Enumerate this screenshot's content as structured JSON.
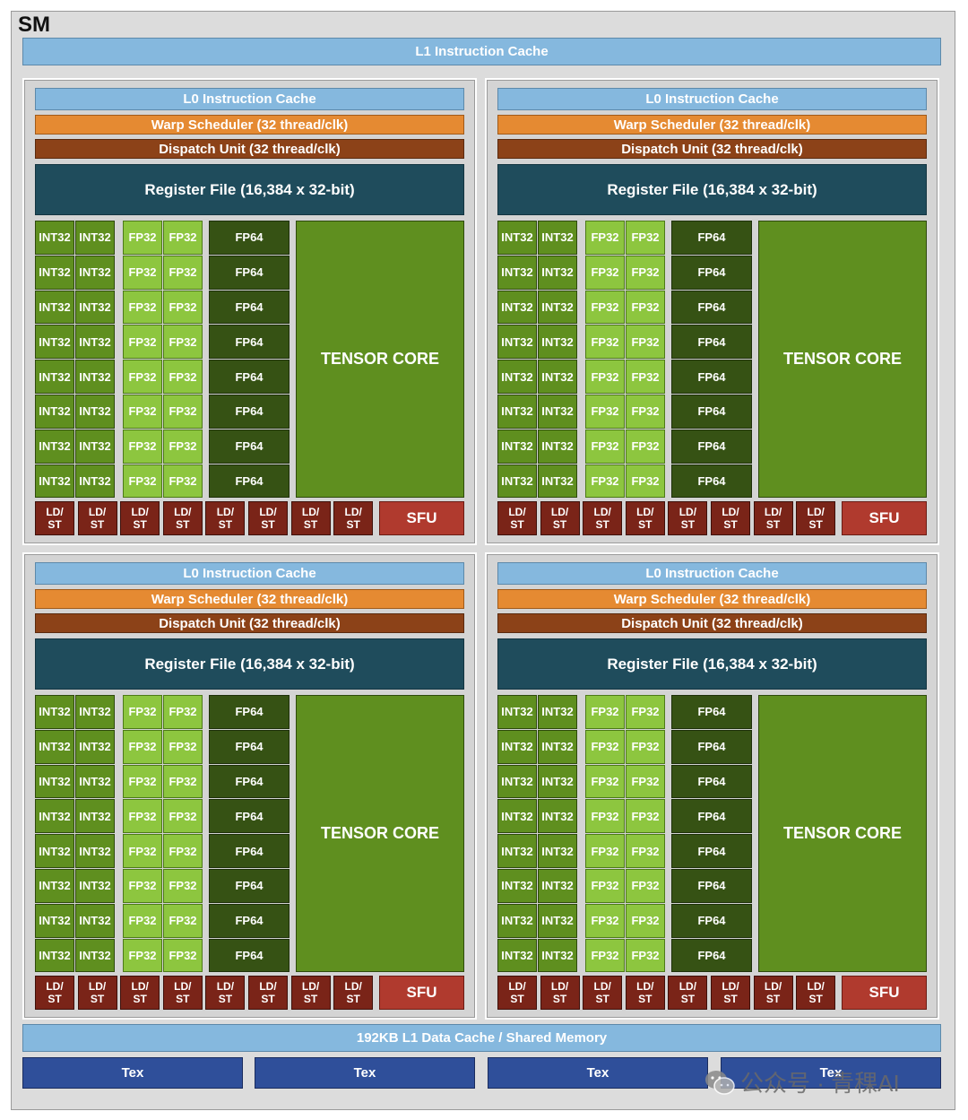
{
  "sm": {
    "title": "SM",
    "l1_instruction_cache": "L1 Instruction Cache",
    "l1_data_cache": "192KB L1 Data Cache / Shared Memory",
    "tex_units": [
      "Tex",
      "Tex",
      "Tex",
      "Tex"
    ]
  },
  "quadrant": {
    "l0_cache": "L0 Instruction Cache",
    "warp_scheduler": "Warp Scheduler (32 thread/clk)",
    "dispatch_unit": "Dispatch Unit (32 thread/clk)",
    "register_file": "Register File (16,384 x 32-bit)",
    "int32_label": "INT32",
    "fp32_label": "FP32",
    "fp64_label": "FP64",
    "tensor_core": "TENSOR CORE",
    "ldst_label": "LD/\nST",
    "sfu_label": "SFU",
    "rows": 8,
    "ldst_count": 8
  },
  "quadrant_count": 4,
  "colors": {
    "cache": "#85b8de",
    "warp": "#e58a32",
    "dispatch": "#8c4218",
    "register": "#1f4c5c",
    "int32": "#5f8f1f",
    "fp32": "#8dc63f",
    "fp64": "#365214",
    "ldst": "#7a2418",
    "sfu": "#b03a2e",
    "tex": "#2f4f9a"
  },
  "watermark": {
    "text": "公众号 · 青稞AI",
    "icon": "wechat-icon"
  }
}
